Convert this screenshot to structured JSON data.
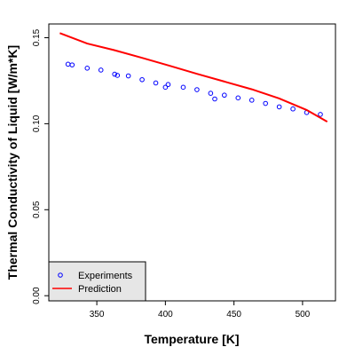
{
  "chart_data": {
    "type": "scatter",
    "title": "",
    "xlabel": "Temperature [K]",
    "ylabel": "Thermal Conductivity of Liquid [W/m*K]",
    "xlim": [
      315,
      524
    ],
    "ylim": [
      -0.003,
      0.158
    ],
    "xticks": [
      350,
      400,
      450,
      500
    ],
    "yticks": [
      0.0,
      0.05,
      0.1,
      0.15
    ],
    "ytick_labels": [
      "0.00",
      "0.05",
      "0.10",
      "0.15"
    ],
    "grid": false,
    "legend_position": "bottom-left",
    "series": [
      {
        "name": "Experiments",
        "kind": "points",
        "marker": "o",
        "color": "#0000ff",
        "x": [
          329,
          332,
          343,
          353,
          363,
          365,
          373,
          383,
          393,
          400,
          402,
          413,
          423,
          433,
          436,
          443,
          453,
          463,
          473,
          483,
          493,
          503,
          513
        ],
        "y": [
          0.1346,
          0.1342,
          0.1323,
          0.1312,
          0.1288,
          0.1281,
          0.1278,
          0.1256,
          0.1237,
          0.1212,
          0.1228,
          0.1212,
          0.1198,
          0.1177,
          0.1144,
          0.1166,
          0.115,
          0.1137,
          0.1118,
          0.1098,
          0.1086,
          0.1065,
          0.1054
        ]
      },
      {
        "name": "Prediction",
        "kind": "line",
        "color": "#ff0000",
        "x": [
          323,
          343,
          363,
          383,
          403,
          423,
          443,
          463,
          483,
          503,
          518
        ],
        "y": [
          0.1527,
          0.1466,
          0.1427,
          0.1383,
          0.1337,
          0.129,
          0.1245,
          0.12,
          0.1147,
          0.108,
          0.1012
        ]
      }
    ]
  }
}
